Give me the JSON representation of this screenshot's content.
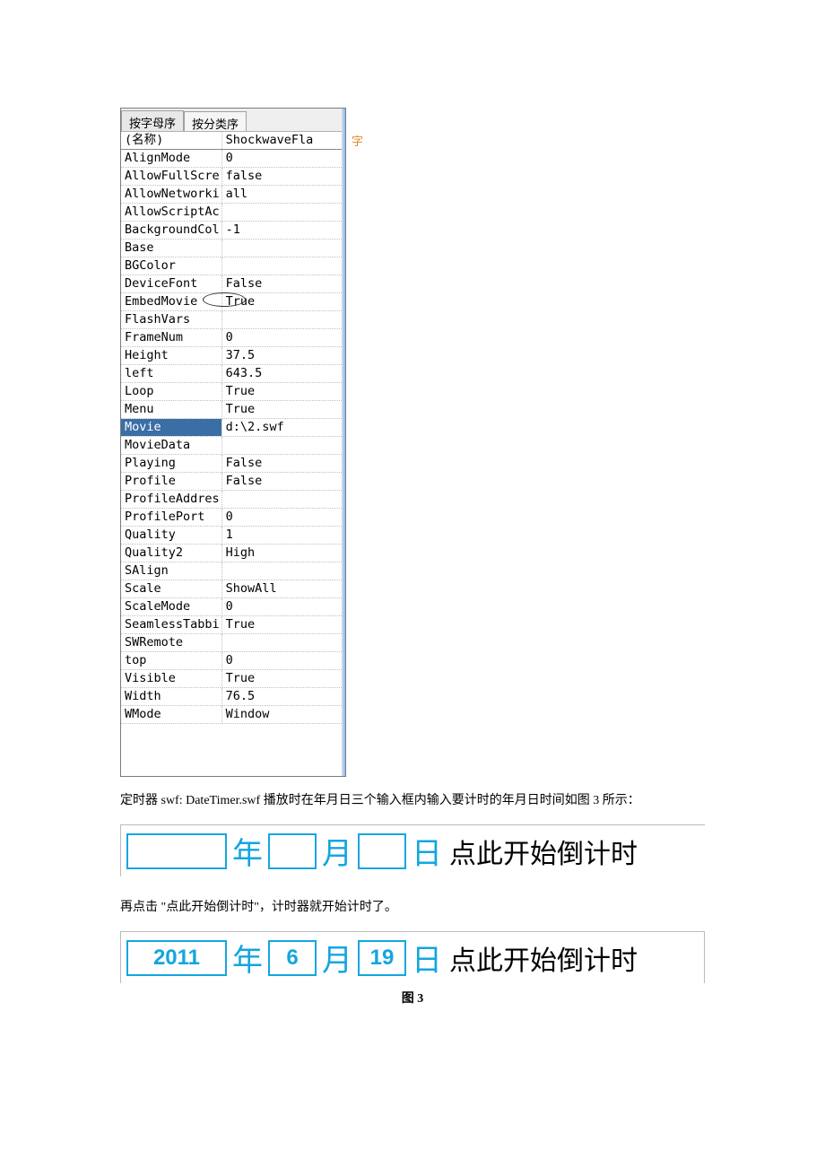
{
  "tabs": {
    "alpha": "按字母序",
    "cat": "按分类序"
  },
  "selected_row": "Movie",
  "props": [
    {
      "k": "(名称)",
      "v": "ShockwaveFla"
    },
    {
      "k": "AlignMode",
      "v": "0"
    },
    {
      "k": "AllowFullScre",
      "v": "false"
    },
    {
      "k": "AllowNetworki",
      "v": "all"
    },
    {
      "k": "AllowScriptAc",
      "v": ""
    },
    {
      "k": "BackgroundCol",
      "v": "-1"
    },
    {
      "k": "Base",
      "v": ""
    },
    {
      "k": "BGColor",
      "v": ""
    },
    {
      "k": "DeviceFont",
      "v": "False"
    },
    {
      "k": "EmbedMovie",
      "v": "True",
      "circled": true
    },
    {
      "k": "FlashVars",
      "v": ""
    },
    {
      "k": "FrameNum",
      "v": "0"
    },
    {
      "k": "Height",
      "v": "37.5"
    },
    {
      "k": "left",
      "v": "643.5"
    },
    {
      "k": "Loop",
      "v": "True"
    },
    {
      "k": "Menu",
      "v": "True"
    },
    {
      "k": "Movie",
      "v": "d:\\2.swf",
      "selected": true
    },
    {
      "k": "MovieData",
      "v": ""
    },
    {
      "k": "Playing",
      "v": "False"
    },
    {
      "k": "Profile",
      "v": "False"
    },
    {
      "k": "ProfileAddres",
      "v": ""
    },
    {
      "k": "ProfilePort",
      "v": "0"
    },
    {
      "k": "Quality",
      "v": "1"
    },
    {
      "k": "Quality2",
      "v": "High"
    },
    {
      "k": "SAlign",
      "v": ""
    },
    {
      "k": "Scale",
      "v": "ShowAll"
    },
    {
      "k": "ScaleMode",
      "v": "0"
    },
    {
      "k": "SeamlessTabbi",
      "v": "True"
    },
    {
      "k": "SWRemote",
      "v": ""
    },
    {
      "k": "top",
      "v": "0"
    },
    {
      "k": "Visible",
      "v": "True"
    },
    {
      "k": "Width",
      "v": "76.5"
    },
    {
      "k": "WMode",
      "v": "Window"
    }
  ],
  "paragraph1": "定时器 swf: DateTimer.swf 播放时在年月日三个输入框内输入要计时的年月日时间如图 3 所示：",
  "timer_labels": {
    "year": "年",
    "month": "月",
    "day": "日",
    "start": "点此开始倒计时"
  },
  "paragraph2": "再点击 \"点此开始倒计时\"，计时器就开始计时了。",
  "timer_values": {
    "year": "2011",
    "month": "6",
    "day": "19"
  },
  "figure_caption": "图 3",
  "colors": {
    "accent_blue": "#13a6df",
    "sel_bg": "#3a6ea5",
    "panel_border": "#7b7b7b"
  }
}
